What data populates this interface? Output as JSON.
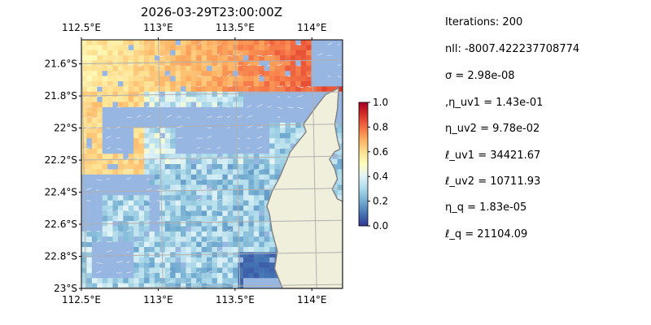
{
  "chart_data": {
    "type": "heatmap",
    "title": "2026-03-29T23:00:00Z",
    "x_ticks": [
      "112.5°E",
      "113°E",
      "113.5°E",
      "114°E"
    ],
    "x_tick_values": [
      112.5,
      113.0,
      113.5,
      114.0
    ],
    "y_ticks": [
      "21.6°S",
      "21.8°S",
      "22°S",
      "22.2°S",
      "22.4°S",
      "22.6°S",
      "22.8°S",
      "23°S"
    ],
    "y_tick_values": [
      -21.6,
      -21.8,
      -22.0,
      -22.2,
      -22.4,
      -22.6,
      -22.8,
      -23.0
    ],
    "xlim": [
      112.5,
      114.2
    ],
    "ylim": [
      -23.0,
      -21.45
    ],
    "grid": true,
    "colorbar": {
      "range": [
        0.0,
        1.0
      ],
      "ticks": [
        "0.0",
        "0.2",
        "0.4",
        "0.6",
        "0.8",
        "1.0"
      ],
      "tick_values": [
        0.0,
        0.2,
        0.4,
        0.6,
        0.8,
        1.0
      ],
      "colormap": [
        "#313695",
        "#4575b4",
        "#74add1",
        "#abd9e9",
        "#e0f3f8",
        "#ffffbf",
        "#fee090",
        "#fdae61",
        "#f46d43",
        "#d73027",
        "#a50026"
      ]
    },
    "colors": {
      "ocean_nodata": "#97b6e1",
      "land": "#efefdb",
      "coast": "#808080"
    }
  },
  "stats": {
    "iterations": "Iterations: 200",
    "nll": "nll: -8007.422237708774",
    "sigma": "σ = 2.98e-08",
    "eta_uv1": ",η_uv1 = 1.43e-01",
    "eta_uv2": "η_uv2 = 9.78e-02",
    "ell_uv1": "ℓ_uv1 = 34421.67",
    "ell_uv2": "ℓ_uv2 = 10711.93",
    "eta_q": "η_q = 1.83e-05",
    "ell_q": "ℓ_q = 21104.09"
  }
}
